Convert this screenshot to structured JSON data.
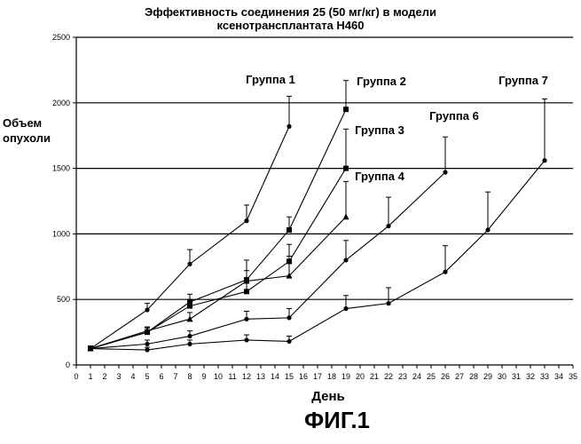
{
  "title_line1": "Эффективность соединения 25 (50 мг/кг) в модели",
  "title_line2": "ксенотрансплантата H460",
  "ylabel_line1": "Объем",
  "ylabel_line2": "опухоли",
  "xlabel": "День",
  "caption": "ФИГ.1",
  "chart_data": {
    "type": "line",
    "title": "Эффективность соединения 25 (50 мг/кг) в модели ксенотрансплантата H460",
    "xlabel": "День",
    "ylabel": "Объем опухоли",
    "xlim": [
      0,
      35
    ],
    "ylim": [
      0,
      2500
    ],
    "xticks": [
      0,
      1,
      2,
      3,
      4,
      5,
      6,
      7,
      8,
      9,
      10,
      11,
      12,
      13,
      14,
      15,
      16,
      17,
      18,
      19,
      20,
      21,
      22,
      23,
      24,
      25,
      26,
      27,
      28,
      29,
      30,
      31,
      32,
      33,
      34,
      35
    ],
    "yticks": [
      0,
      500,
      1000,
      1500,
      2000,
      2500
    ],
    "grid": "horizontal",
    "series": [
      {
        "name": "Группа 1",
        "marker": "circle",
        "x": [
          1,
          5,
          8,
          12,
          15
        ],
        "y": [
          125,
          420,
          770,
          1100,
          1820
        ],
        "err": [
          20,
          50,
          110,
          120,
          230
        ]
      },
      {
        "name": "Группа 2",
        "marker": "square",
        "x": [
          1,
          5,
          8,
          12,
          15,
          19
        ],
        "y": [
          125,
          250,
          480,
          650,
          1030,
          1950
        ],
        "err": [
          15,
          40,
          60,
          150,
          100,
          220
        ]
      },
      {
        "name": "Группа 3",
        "marker": "square",
        "x": [
          1,
          5,
          8,
          12,
          15,
          19
        ],
        "y": [
          125,
          250,
          450,
          560,
          790,
          1500
        ],
        "err": [
          15,
          30,
          50,
          100,
          130,
          300
        ]
      },
      {
        "name": "Группа 4",
        "marker": "triangle",
        "x": [
          1,
          5,
          8,
          12,
          15,
          19
        ],
        "y": [
          125,
          260,
          350,
          640,
          680,
          1130
        ],
        "err": [
          15,
          30,
          50,
          80,
          150,
          270
        ]
      },
      {
        "name": "Группа 6",
        "marker": "circle",
        "x": [
          1,
          5,
          8,
          12,
          15,
          19,
          22,
          26
        ],
        "y": [
          125,
          160,
          220,
          350,
          360,
          800,
          1060,
          1470
        ],
        "err": [
          15,
          30,
          40,
          60,
          70,
          150,
          220,
          270
        ]
      },
      {
        "name": "Группа 7",
        "marker": "circle",
        "x": [
          1,
          5,
          8,
          12,
          15,
          19,
          22,
          26,
          29,
          33
        ],
        "y": [
          125,
          115,
          160,
          190,
          180,
          430,
          470,
          710,
          1030,
          1560
        ],
        "err": [
          10,
          20,
          30,
          40,
          40,
          100,
          120,
          200,
          290,
          470
        ]
      }
    ]
  }
}
